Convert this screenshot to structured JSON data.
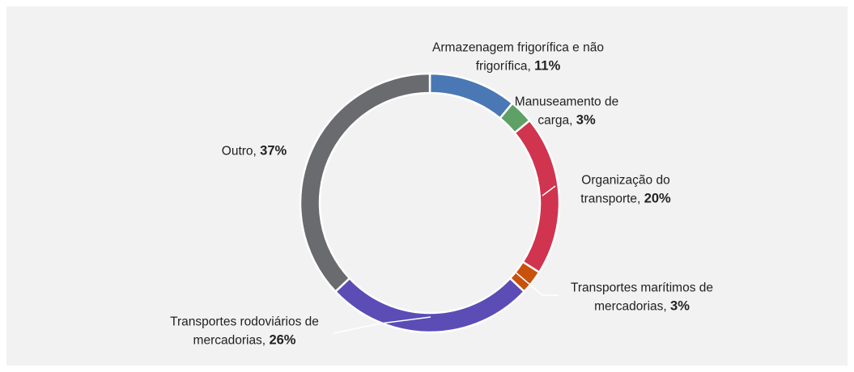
{
  "chart_data": {
    "type": "donut",
    "categories": [
      "Armazenagem frigorífica e não frigorífica,",
      "Manuseamento de carga,",
      "Organização do transporte,",
      "Transportes marítimos de mercadorias,",
      "Transportes rodoviários de mercadorias,",
      "Outro,"
    ],
    "values": [
      11,
      3,
      20,
      3,
      26,
      37
    ],
    "value_labels": [
      "11%",
      "3%",
      "20%",
      "3%",
      "26%",
      "37%"
    ],
    "colors": [
      "#4a78b5",
      "#5fa066",
      "#d0344f",
      "#c8520c",
      "#5b4db5",
      "#6a6b6f"
    ]
  }
}
